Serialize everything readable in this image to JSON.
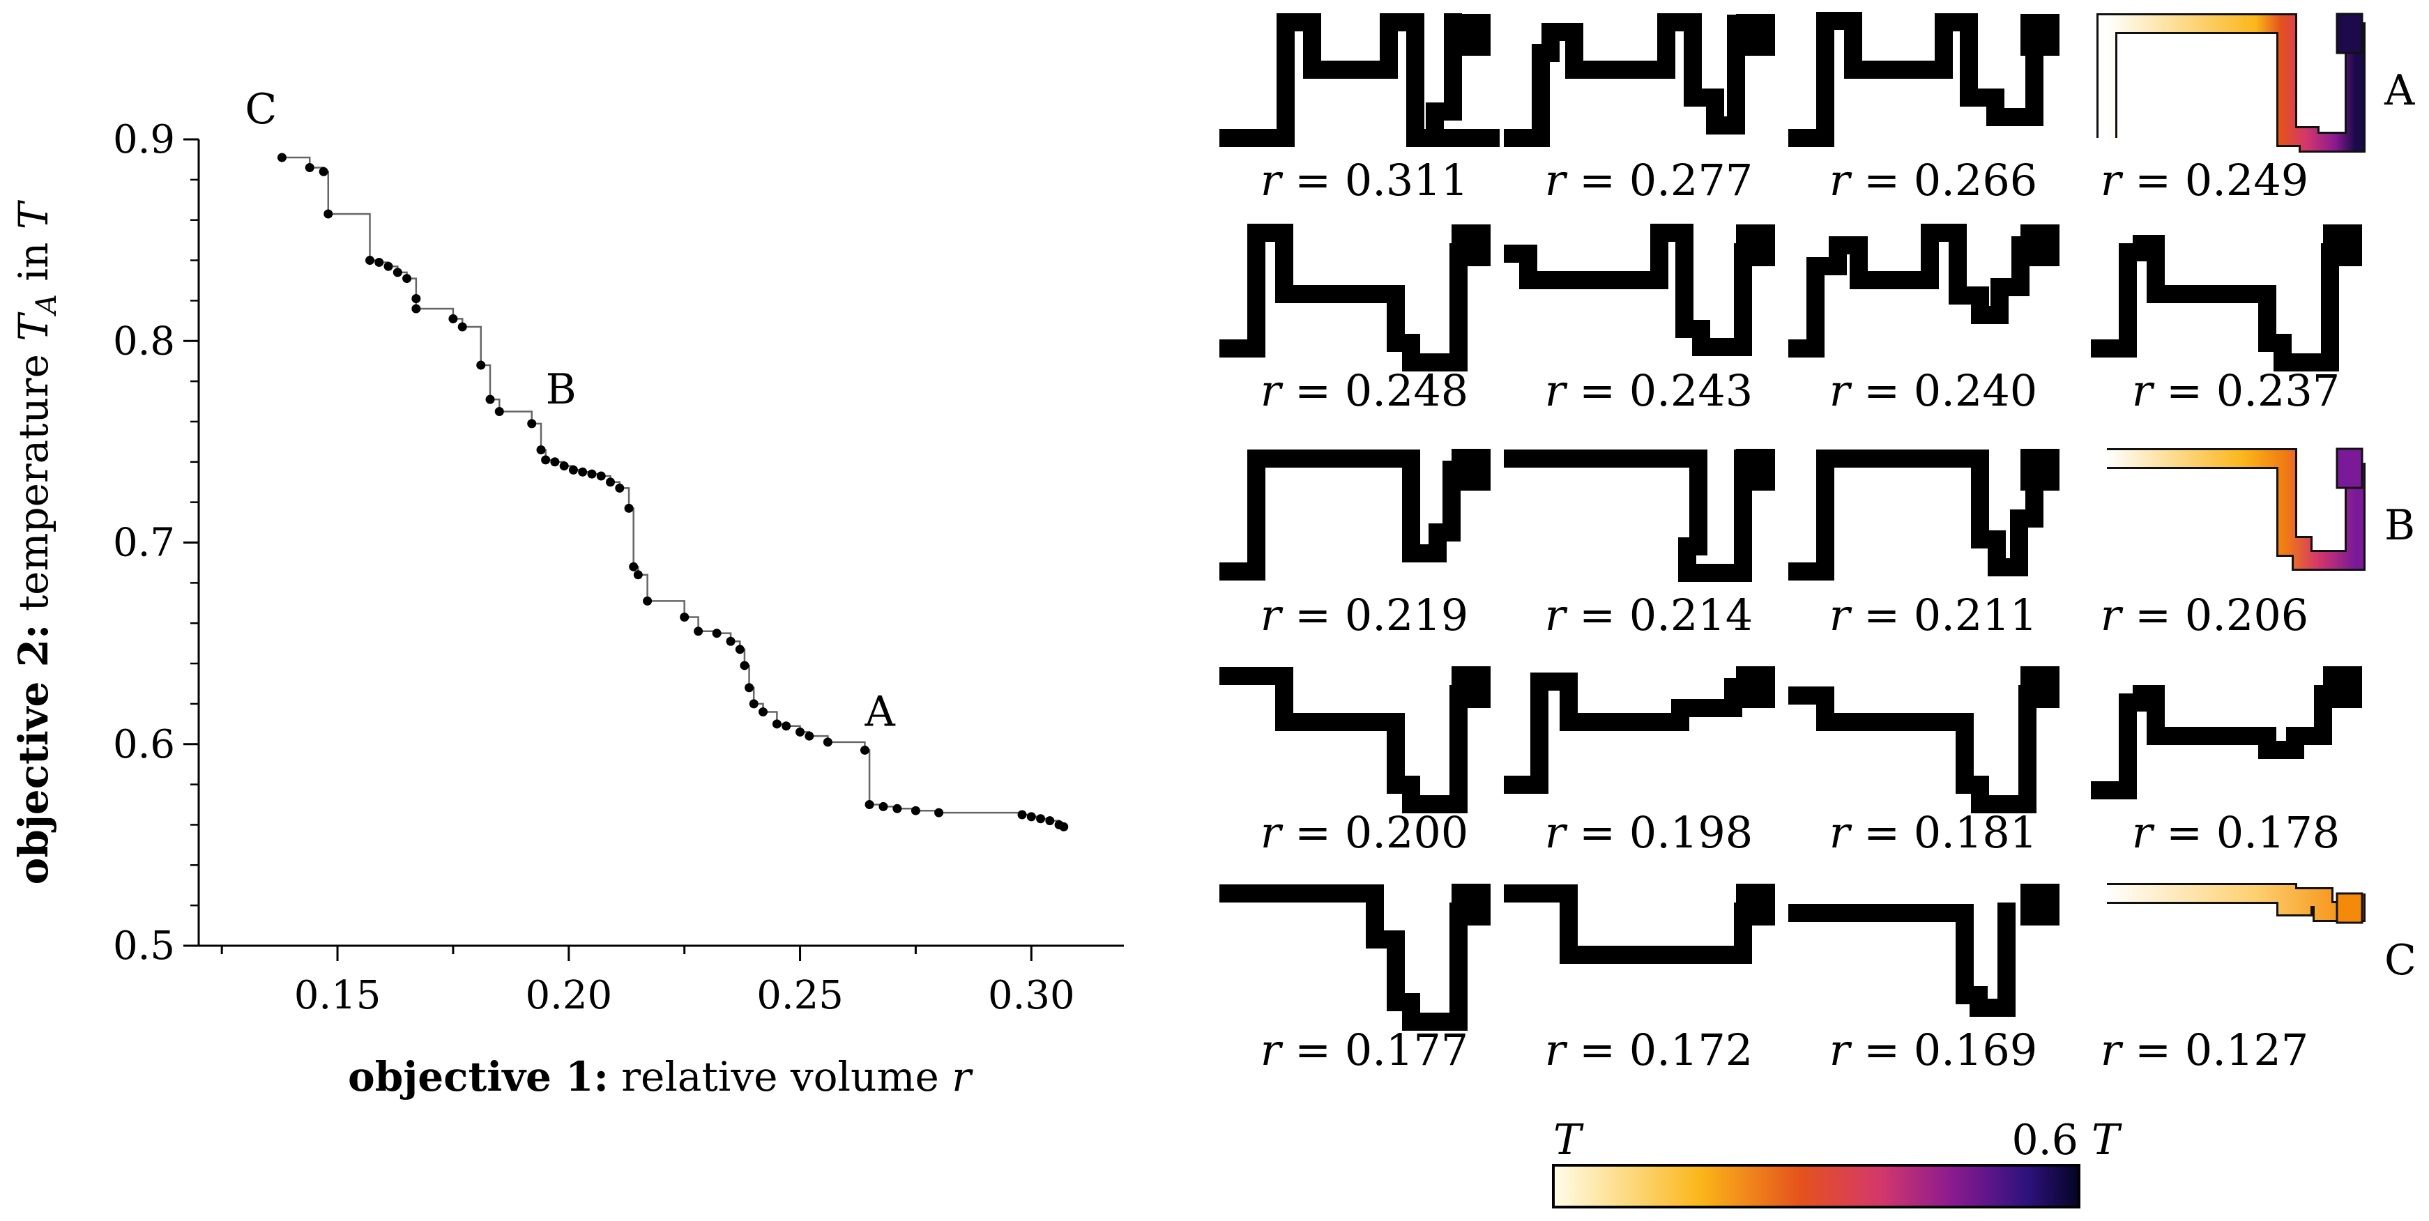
{
  "chart_data": [
    {
      "type": "scatter",
      "step_line": true,
      "xlabel_bold": "objective 1:",
      "xlabel_text": " relative volume ",
      "xlabel_var": "r",
      "ylabel_bold": "objective 2:",
      "ylabel_text": " temperature ",
      "ylabel_var": "T",
      "ylabel_sub": "A",
      "ylabel_in": " in ",
      "ylabel_unit": "T",
      "xlim": [
        0.12,
        0.32
      ],
      "ylim": [
        0.5,
        0.9
      ],
      "xticks": [
        0.15,
        0.2,
        0.25,
        0.3
      ],
      "xtick_labels": [
        "0.15",
        "0.20",
        "0.25",
        "0.30"
      ],
      "yticks": [
        0.5,
        0.6,
        0.7,
        0.8,
        0.9
      ],
      "ytick_labels": [
        "0.5",
        "0.6",
        "0.7",
        "0.8",
        "0.9"
      ],
      "points": [
        [
          0.138,
          0.891
        ],
        [
          0.144,
          0.886
        ],
        [
          0.147,
          0.884
        ],
        [
          0.148,
          0.863
        ],
        [
          0.157,
          0.84
        ],
        [
          0.159,
          0.839
        ],
        [
          0.161,
          0.837
        ],
        [
          0.163,
          0.834
        ],
        [
          0.165,
          0.831
        ],
        [
          0.167,
          0.821
        ],
        [
          0.167,
          0.816
        ],
        [
          0.175,
          0.811
        ],
        [
          0.177,
          0.807
        ],
        [
          0.181,
          0.788
        ],
        [
          0.183,
          0.771
        ],
        [
          0.185,
          0.765
        ],
        [
          0.192,
          0.759
        ],
        [
          0.194,
          0.746
        ],
        [
          0.195,
          0.741
        ],
        [
          0.197,
          0.74
        ],
        [
          0.199,
          0.738
        ],
        [
          0.201,
          0.736
        ],
        [
          0.203,
          0.735
        ],
        [
          0.205,
          0.734
        ],
        [
          0.207,
          0.733
        ],
        [
          0.209,
          0.73
        ],
        [
          0.211,
          0.727
        ],
        [
          0.213,
          0.717
        ],
        [
          0.214,
          0.688
        ],
        [
          0.215,
          0.684
        ],
        [
          0.217,
          0.671
        ],
        [
          0.225,
          0.663
        ],
        [
          0.228,
          0.656
        ],
        [
          0.232,
          0.655
        ],
        [
          0.235,
          0.651
        ],
        [
          0.237,
          0.647
        ],
        [
          0.238,
          0.639
        ],
        [
          0.239,
          0.628
        ],
        [
          0.24,
          0.62
        ],
        [
          0.242,
          0.616
        ],
        [
          0.245,
          0.61
        ],
        [
          0.247,
          0.609
        ],
        [
          0.25,
          0.606
        ],
        [
          0.252,
          0.604
        ],
        [
          0.256,
          0.601
        ],
        [
          0.264,
          0.597
        ],
        [
          0.265,
          0.57
        ],
        [
          0.268,
          0.569
        ],
        [
          0.271,
          0.568
        ],
        [
          0.275,
          0.567
        ],
        [
          0.28,
          0.566
        ],
        [
          0.298,
          0.565
        ],
        [
          0.3,
          0.564
        ],
        [
          0.302,
          0.563
        ],
        [
          0.304,
          0.562
        ],
        [
          0.306,
          0.56
        ],
        [
          0.307,
          0.559
        ]
      ],
      "annotations": [
        {
          "label": "C",
          "x": 0.13,
          "y": 0.908
        },
        {
          "label": "B",
          "x": 0.195,
          "y": 0.769
        },
        {
          "label": "A",
          "x": 0.264,
          "y": 0.609
        }
      ]
    },
    {
      "type": "table",
      "description_rows": 5,
      "r_prefix": "r",
      "r_eq": " = ",
      "cells": [
        {
          "r": "0.311",
          "variant": 1
        },
        {
          "r": "0.277",
          "variant": 2
        },
        {
          "r": "0.266",
          "variant": 3
        },
        {
          "r": "0.249",
          "variant": 4,
          "colored": "A"
        },
        {
          "r": "0.248",
          "variant": 5
        },
        {
          "r": "0.243",
          "variant": 6
        },
        {
          "r": "0.240",
          "variant": 7
        },
        {
          "r": "0.237",
          "variant": 8
        },
        {
          "r": "0.219",
          "variant": 9
        },
        {
          "r": "0.214",
          "variant": 10
        },
        {
          "r": "0.211",
          "variant": 11
        },
        {
          "r": "0.206",
          "variant": 12,
          "colored": "B"
        },
        {
          "r": "0.200",
          "variant": 13
        },
        {
          "r": "0.198",
          "variant": 14
        },
        {
          "r": "0.181",
          "variant": 15
        },
        {
          "r": "0.178",
          "variant": 16
        },
        {
          "r": "0.177",
          "variant": 17
        },
        {
          "r": "0.172",
          "variant": 18
        },
        {
          "r": "0.169",
          "variant": 19
        },
        {
          "r": "0.127",
          "variant": 20,
          "colored": "C"
        }
      ],
      "row_labels": [
        "A",
        "",
        "B",
        "",
        "C"
      ]
    }
  ],
  "colorbar": {
    "left_label": "T",
    "right_value": "0.6",
    "right_unit": "T",
    "colormap": "inferno",
    "stops": [
      "#fcffa4",
      "#fac228",
      "#f57d15",
      "#d44842",
      "#9f2a63",
      "#65156e",
      "#280b53",
      "#000004"
    ]
  }
}
